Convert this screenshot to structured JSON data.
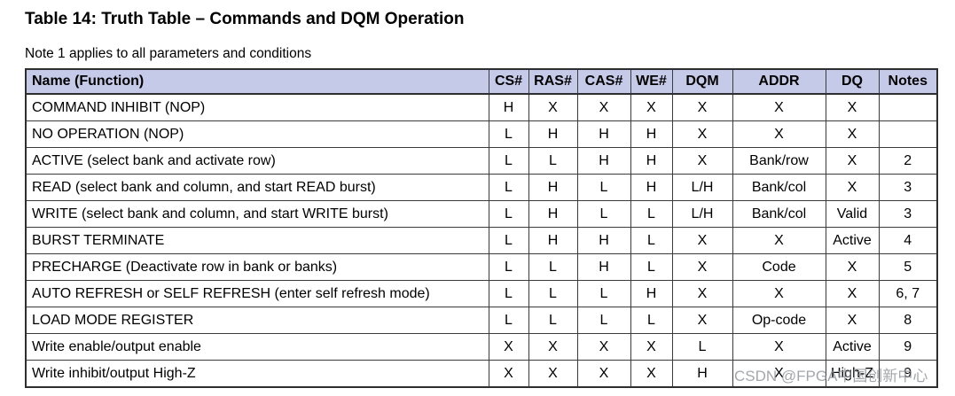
{
  "page": {
    "title": "Table 14: Truth Table – Commands and DQM Operation",
    "note": "Note 1 applies to all parameters and conditions"
  },
  "table": {
    "columns": [
      "Name (Function)",
      "CS#",
      "RAS#",
      "CAS#",
      "WE#",
      "DQM",
      "ADDR",
      "DQ",
      "Notes"
    ],
    "rows": [
      [
        "COMMAND INHIBIT (NOP)",
        "H",
        "X",
        "X",
        "X",
        "X",
        "X",
        "X",
        ""
      ],
      [
        "NO OPERATION (NOP)",
        "L",
        "H",
        "H",
        "H",
        "X",
        "X",
        "X",
        ""
      ],
      [
        "ACTIVE (select bank and activate row)",
        "L",
        "L",
        "H",
        "H",
        "X",
        "Bank/row",
        "X",
        "2"
      ],
      [
        "READ (select bank and column, and start READ burst)",
        "L",
        "H",
        "L",
        "H",
        "L/H",
        "Bank/col",
        "X",
        "3"
      ],
      [
        "WRITE (select bank and column, and start WRITE burst)",
        "L",
        "H",
        "L",
        "L",
        "L/H",
        "Bank/col",
        "Valid",
        "3"
      ],
      [
        "BURST TERMINATE",
        "L",
        "H",
        "H",
        "L",
        "X",
        "X",
        "Active",
        "4"
      ],
      [
        "PRECHARGE (Deactivate row in bank or banks)",
        "L",
        "L",
        "H",
        "L",
        "X",
        "Code",
        "X",
        "5"
      ],
      [
        "AUTO REFRESH or SELF REFRESH (enter self refresh mode)",
        "L",
        "L",
        "L",
        "H",
        "X",
        "X",
        "X",
        "6, 7"
      ],
      [
        "LOAD MODE REGISTER",
        "L",
        "L",
        "L",
        "L",
        "X",
        "Op-code",
        "X",
        "8"
      ],
      [
        "Write enable/output enable",
        "X",
        "X",
        "X",
        "X",
        "L",
        "X",
        "Active",
        "9"
      ],
      [
        "Write inhibit/output High-Z",
        "X",
        "X",
        "X",
        "X",
        "H",
        "X",
        "High-Z",
        "9"
      ]
    ]
  },
  "watermark": {
    "text": "CSDN @FPGA中国创新中心"
  },
  "colors": {
    "header_bg": "#c6cae9",
    "border": "#3b3b3b",
    "text": "#000000",
    "watermark_text": "#8c9096"
  }
}
